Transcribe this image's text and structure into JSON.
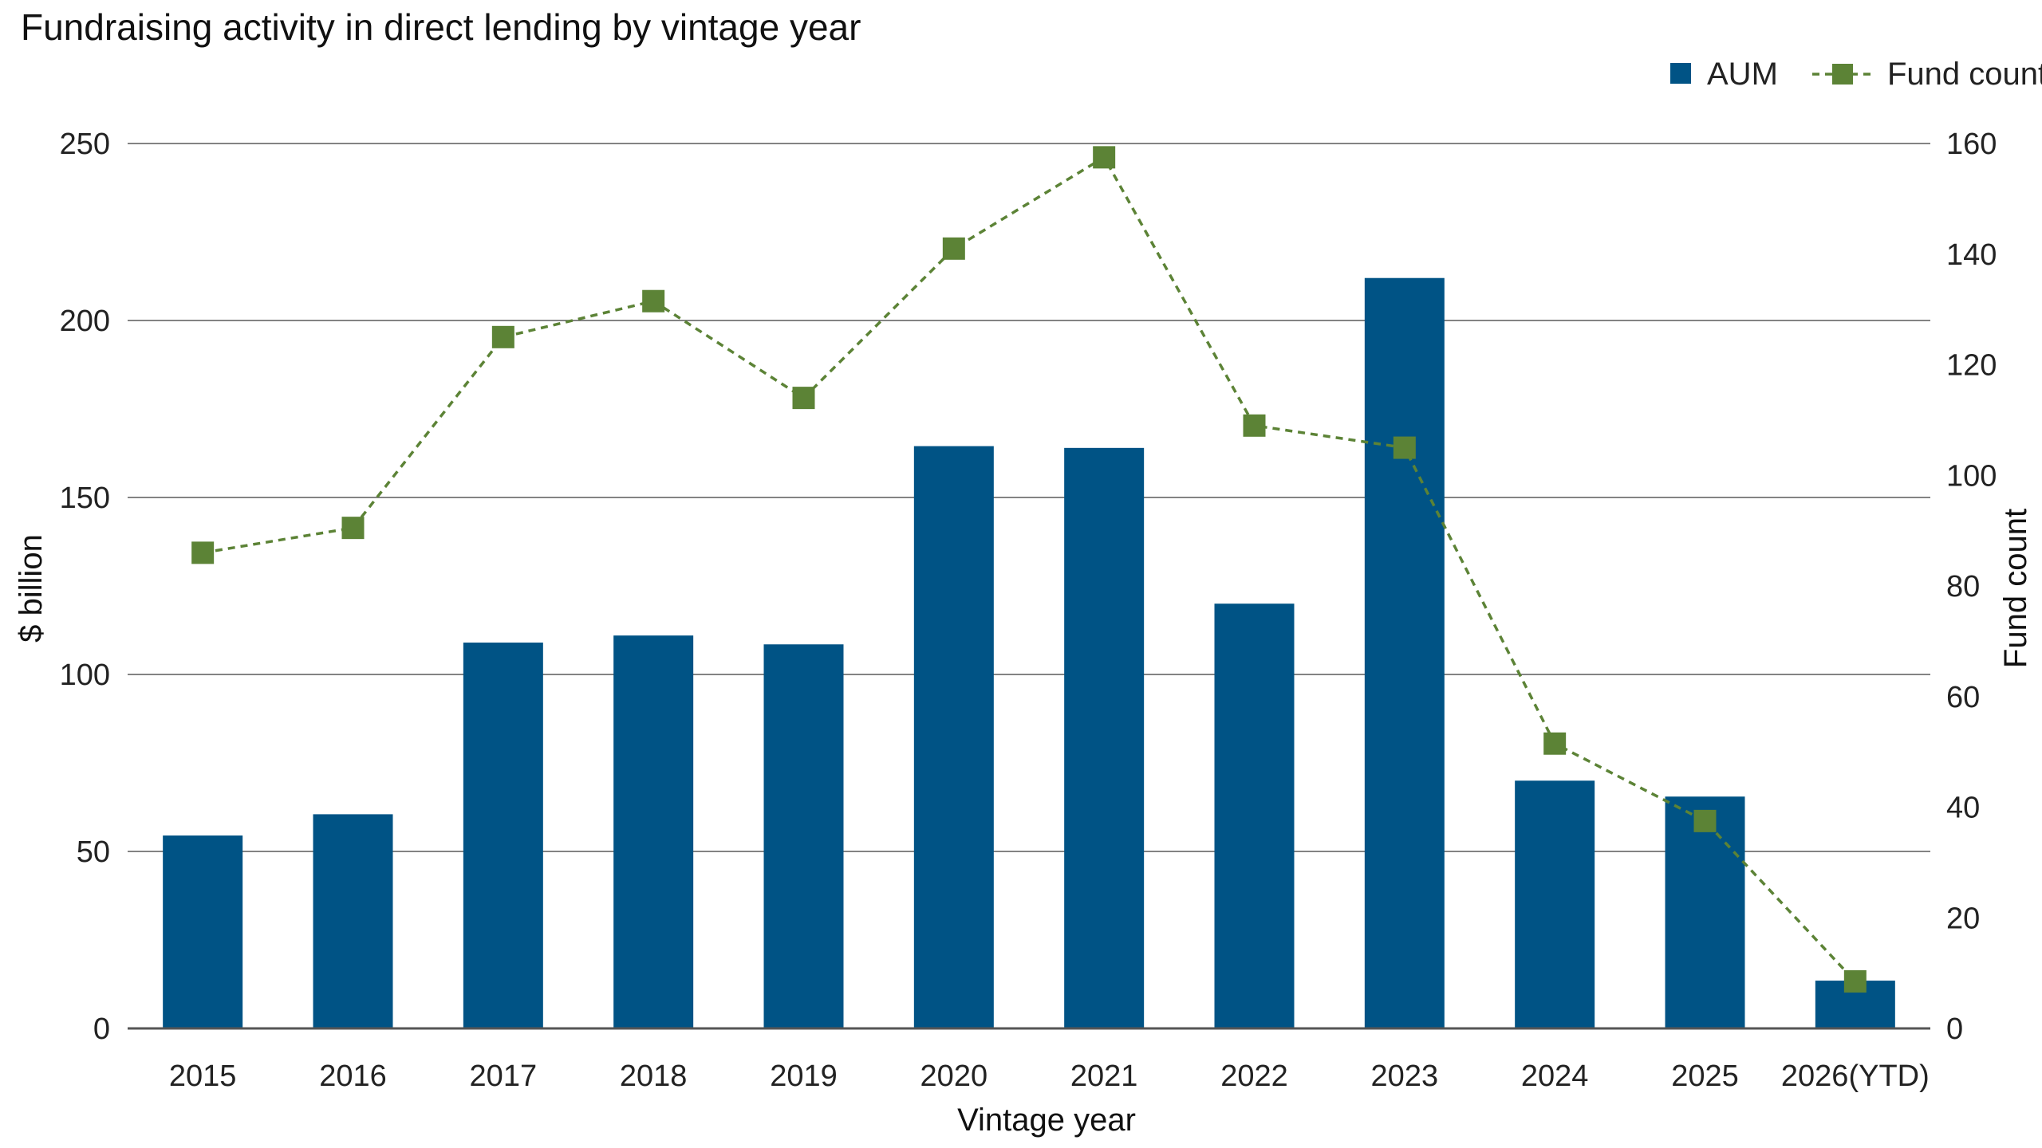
{
  "chart_data": {
    "type": "bar",
    "title": "Fundraising activity in direct lending by vintage year",
    "xlabel": "Vintage year",
    "ylabel": "$ billion",
    "y2label": "Fund count",
    "categories": [
      "2015",
      "2016",
      "2017",
      "2018",
      "2019",
      "2020",
      "2021",
      "2022",
      "2023",
      "2024",
      "2025",
      "2026(YTD)"
    ],
    "ylim": [
      0,
      250
    ],
    "yticks": [
      0,
      50,
      100,
      150,
      200,
      250
    ],
    "y2lim": [
      0,
      160
    ],
    "y2ticks": [
      0,
      20,
      40,
      60,
      80,
      100,
      120,
      140,
      160
    ],
    "grid": true,
    "legend_position": "top-right",
    "series": [
      {
        "name": "AUM",
        "type": "bar",
        "axis": "left",
        "color": "#005385",
        "values": [
          54.5,
          60.5,
          109,
          111,
          108.5,
          164.5,
          164,
          120,
          212,
          70,
          65.5,
          13.5
        ]
      },
      {
        "name": "Fund count",
        "type": "line",
        "axis": "right",
        "color": "#5C8336",
        "line_style": "dashed",
        "marker": "square",
        "values": [
          86,
          90.5,
          125,
          131.5,
          114,
          141,
          157.5,
          109,
          105,
          51.5,
          37.5,
          8.5
        ]
      }
    ]
  }
}
